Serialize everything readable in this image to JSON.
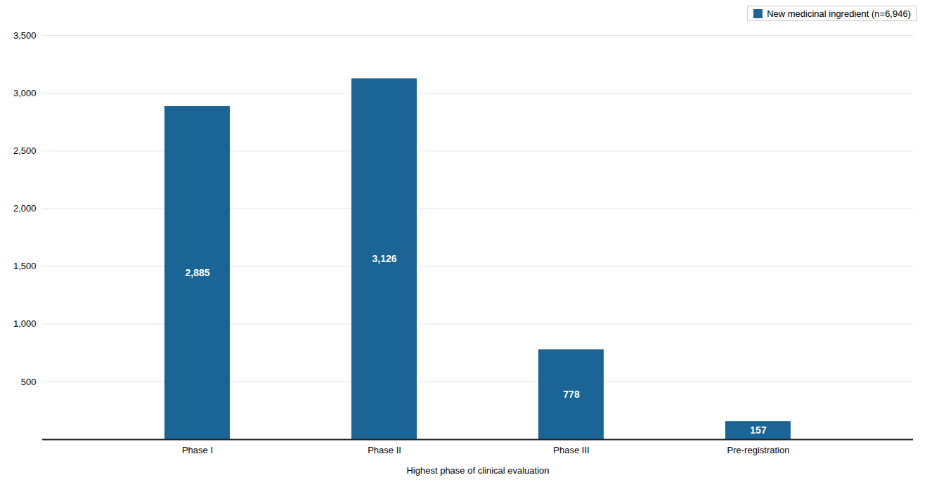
{
  "chart_data": {
    "type": "bar",
    "xlabel": "Highest phase of clinical evaluation",
    "categories": [
      "Phase I",
      "Phase II",
      "Phase III",
      "Pre-registration"
    ],
    "series": [
      {
        "name": "New medicinal ingredient (n=6,946)",
        "color": "#1a6496",
        "values": [
          2885,
          3126,
          778,
          157
        ],
        "value_labels": [
          "2,885",
          "3,126",
          "778",
          "157"
        ]
      }
    ],
    "data_labels": true,
    "ylim": [
      0,
      3500
    ],
    "yticks": [
      500,
      {
        "value": 1000,
        "label": "1,000"
      },
      {
        "value": 1500,
        "label": "1,500"
      },
      {
        "value": 2000,
        "label": "2,000"
      },
      {
        "value": 2500,
        "label": "2,500"
      },
      {
        "value": 3000,
        "label": "3,000"
      },
      {
        "value": 3500,
        "label": "3,500"
      }
    ],
    "grid": true,
    "legend": "upper right"
  }
}
